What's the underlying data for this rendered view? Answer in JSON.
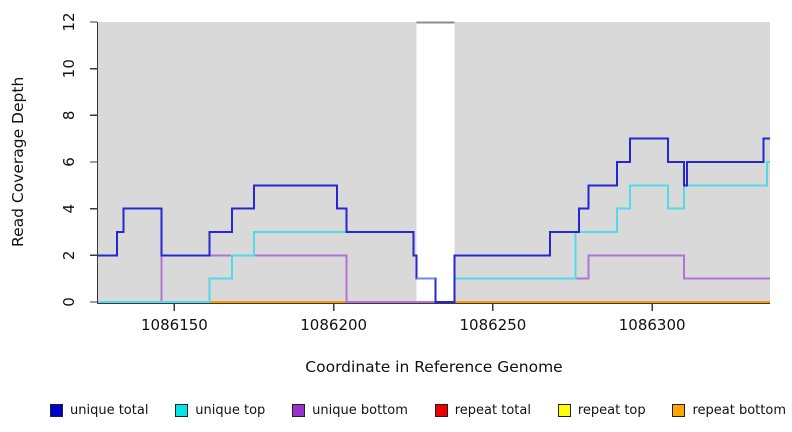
{
  "chart_data": {
    "type": "line",
    "subtype": "step-coverage",
    "title": "",
    "xlabel": "Coordinate in Reference Genome",
    "ylabel": "Read Coverage Depth",
    "xlim": [
      1086126,
      1086337
    ],
    "ylim": [
      0,
      12
    ],
    "x_ticks": [
      "1086150",
      "1086200",
      "1086250",
      "1086300"
    ],
    "y_ticks": [
      "0",
      "2",
      "4",
      "6",
      "8",
      "10",
      "12"
    ],
    "grid": "off",
    "legend_position": "bottom",
    "background": {
      "page_fill": "#ffffff",
      "plot_fill": "#d9d9d9",
      "axis_color": "#3a3a3a",
      "text_color": "#111111",
      "gap_region": {
        "from": 1086226,
        "to": 1086238,
        "fill": "#ffffff",
        "top_border_color": "#8c8c8c"
      }
    },
    "series": [
      {
        "name": "repeat top",
        "color": "#ffff00",
        "legend_color": "#ffff00",
        "steps": [
          [
            1086126,
            0
          ]
        ]
      },
      {
        "name": "repeat total",
        "color": "#dd0000",
        "legend_color": "#ee0000",
        "steps": [
          [
            1086126,
            0
          ]
        ]
      },
      {
        "name": "repeat bottom",
        "color": "#ff9900",
        "legend_color": "#ffa500",
        "steps": [
          [
            1086126,
            0
          ]
        ]
      },
      {
        "name": "unique bottom",
        "color": "#b273d6",
        "legend_color": "#9932cc",
        "steps": [
          [
            1086126,
            0
          ],
          [
            1086146,
            2
          ],
          [
            1086204,
            0
          ],
          [
            1086238,
            1
          ],
          [
            1086280,
            2
          ],
          [
            1086310,
            1
          ]
        ]
      },
      {
        "name": "unique top",
        "color": "#4fdce8",
        "legend_color": "#00e5e5",
        "steps": [
          [
            1086126,
            0
          ],
          [
            1086161,
            1
          ],
          [
            1086168,
            2
          ],
          [
            1086175,
            3
          ],
          [
            1086225,
            2
          ],
          [
            1086226,
            1
          ],
          [
            1086232,
            0
          ],
          [
            1086238,
            1
          ],
          [
            1086276,
            3
          ],
          [
            1086289,
            4
          ],
          [
            1086293,
            5
          ],
          [
            1086305,
            4
          ],
          [
            1086310,
            5
          ],
          [
            1086336,
            6
          ]
        ]
      },
      {
        "name": "unique total",
        "color": "#2626d2",
        "legend_color": "#0000cd",
        "steps": [
          [
            1086126,
            2
          ],
          [
            1086132,
            3
          ],
          [
            1086134,
            4
          ],
          [
            1086146,
            2
          ],
          [
            1086161,
            3
          ],
          [
            1086168,
            4
          ],
          [
            1086175,
            5
          ],
          [
            1086201,
            4
          ],
          [
            1086204,
            3
          ],
          [
            1086225,
            2
          ],
          [
            1086226,
            1
          ],
          [
            1086232,
            0
          ],
          [
            1086238,
            2
          ],
          [
            1086268,
            3
          ],
          [
            1086277,
            4
          ],
          [
            1086280,
            5
          ],
          [
            1086289,
            6
          ],
          [
            1086293,
            7
          ],
          [
            1086305,
            6
          ],
          [
            1086310,
            5
          ],
          [
            1086311,
            6
          ],
          [
            1086335,
            7
          ]
        ]
      }
    ],
    "blend_segments": [
      {
        "label": "unique-top-at-zero-blend",
        "layer": "under",
        "color": "#8fd4a1",
        "y": 0,
        "from": 1086126,
        "to": 1086161
      },
      {
        "label": "unique-bottom-at-zero-blend",
        "layer": "under",
        "color": "#d06fb0",
        "y": 0,
        "from": 1086204,
        "to": 1086232
      },
      {
        "label": "unique-total-over-top-blend",
        "layer": "over",
        "color": "#6c8ce8",
        "y": 1,
        "from": 1086226,
        "to": 1086232
      }
    ],
    "legend": [
      {
        "label": "unique total",
        "color": "#0000cd"
      },
      {
        "label": "unique top",
        "color": "#00e5e5"
      },
      {
        "label": "unique bottom",
        "color": "#9932cc"
      },
      {
        "label": "repeat total",
        "color": "#ee0000"
      },
      {
        "label": "repeat top",
        "color": "#ffff00"
      },
      {
        "label": "repeat bottom",
        "color": "#ffa500"
      }
    ]
  }
}
